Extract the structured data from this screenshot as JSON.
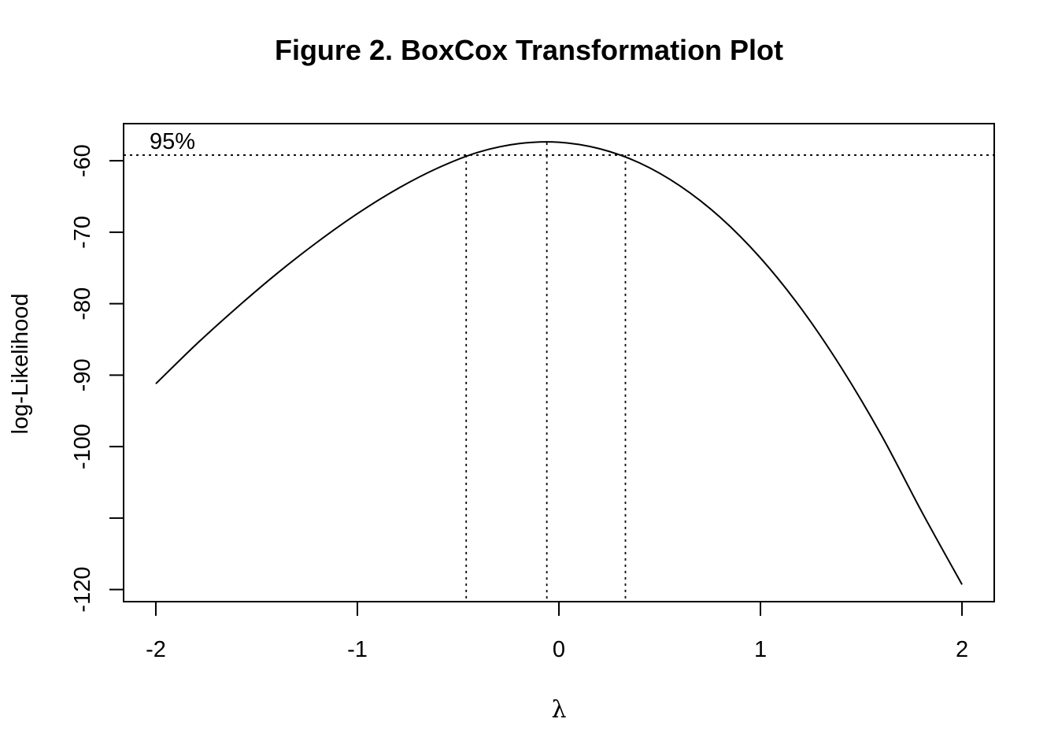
{
  "chart_data": {
    "type": "line",
    "title": "Figure 2. BoxCox Transformation Plot",
    "xlabel": "λ",
    "ylabel": "log-Likelihood",
    "xlim": [
      -2.16,
      2.16
    ],
    "ylim": [
      -121.7,
      -54.8
    ],
    "x_ticks": [
      -2,
      -1,
      0,
      1,
      2
    ],
    "x_tick_labels": [
      "-2",
      "-1",
      "0",
      "1",
      "2"
    ],
    "y_ticks": [
      -120,
      -110,
      -100,
      -90,
      -80,
      -70,
      -60
    ],
    "y_tick_labels": [
      "-120",
      "",
      "-100",
      "-90",
      "-80",
      "-70",
      "-60"
    ],
    "series": [
      {
        "x": [
          -2.0,
          -1.8,
          -1.6,
          -1.4,
          -1.2,
          -1.0,
          -0.8,
          -0.6,
          -0.4,
          -0.2,
          0.0,
          0.2,
          0.4,
          0.6,
          0.8,
          1.0,
          1.2,
          1.4,
          1.6,
          1.8,
          2.0
        ],
        "y": [
          -91.2,
          -85.7,
          -80.6,
          -75.8,
          -71.4,
          -67.4,
          -63.9,
          -61.0,
          -58.8,
          -57.6,
          -57.4,
          -58.3,
          -60.3,
          -63.5,
          -67.9,
          -73.6,
          -80.6,
          -88.9,
          -98.4,
          -109.1,
          -119.3
        ]
      }
    ],
    "annotations": {
      "ci_label": "95%",
      "ci_level": -59.2,
      "lambda_hat": -0.06,
      "ci_lower": -0.46,
      "ci_upper": 0.33
    },
    "grid": false,
    "legend": "none"
  }
}
